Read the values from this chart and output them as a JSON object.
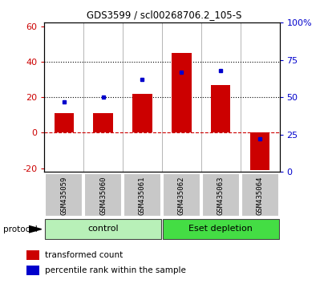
{
  "title": "GDS3599 / scl00268706.2_105-S",
  "samples": [
    "GSM435059",
    "GSM435060",
    "GSM435061",
    "GSM435062",
    "GSM435063",
    "GSM435064"
  ],
  "red_values": [
    11,
    11,
    22,
    45,
    27,
    -21
  ],
  "blue_values_pct": [
    47,
    50,
    62,
    67,
    68,
    22
  ],
  "left_ylim": [
    -22,
    62
  ],
  "right_ylim": [
    0,
    100
  ],
  "left_yticks": [
    -20,
    0,
    20,
    40,
    60
  ],
  "right_yticks": [
    0,
    25,
    50,
    75,
    100
  ],
  "right_yticklabels": [
    "0",
    "25",
    "50",
    "75",
    "100%"
  ],
  "left_yticklabels": [
    "-20",
    "0",
    "20",
    "40",
    "60"
  ],
  "hline_dotted_values": [
    20,
    40
  ],
  "hline_dashed_value": 0,
  "group_labels": [
    "control",
    "Eset depletion"
  ],
  "group_colors": [
    "#b8f0b8",
    "#44dd44"
  ],
  "protocol_label": "protocol",
  "bar_color_red": "#cc0000",
  "bar_color_blue": "#0000cc",
  "bar_width": 0.5,
  "bg_plot": "#ffffff",
  "bg_label": "#c8c8c8",
  "legend_red": "transformed count",
  "legend_blue": "percentile rank within the sample",
  "left_tick_color": "#cc0000",
  "right_tick_color": "#0000cc",
  "blue_square_size": 3.5
}
